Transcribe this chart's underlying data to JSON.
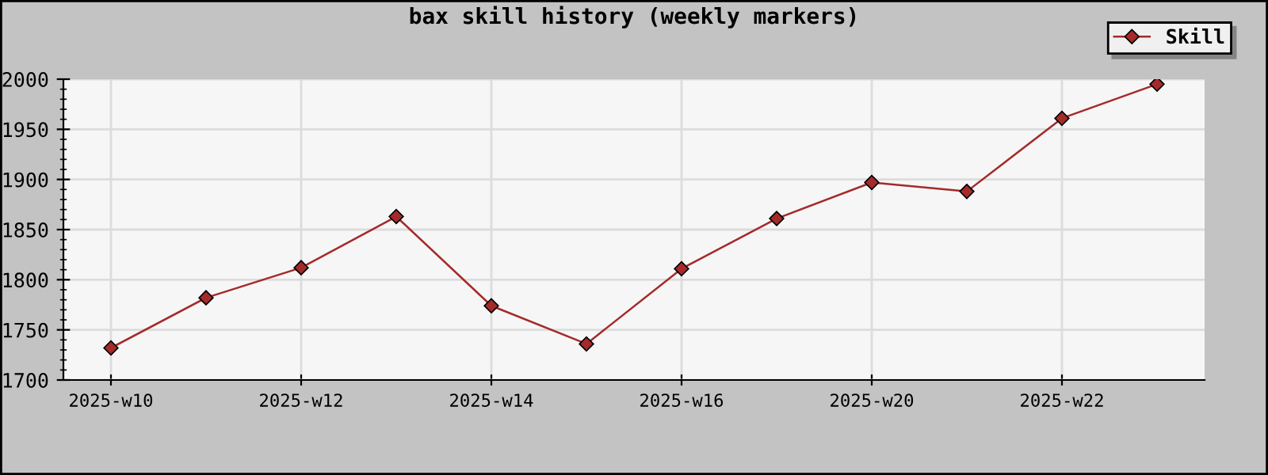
{
  "chart_data": {
    "type": "line",
    "title": "bax skill history (weekly markers)",
    "categories": [
      "2025-w10",
      null,
      "2025-w12",
      null,
      "2025-w14",
      null,
      "2025-w16",
      null,
      "2025-w20",
      null,
      "2025-w22",
      null
    ],
    "series": [
      {
        "name": "Skill",
        "color": "#a52a2a",
        "values": [
          1732,
          1782,
          1812,
          1863,
          1774,
          1736,
          1811,
          1861,
          1897,
          1888,
          1961,
          1995
        ]
      }
    ],
    "ylim": [
      1700,
      2000
    ],
    "yticks": [
      1700,
      1750,
      1800,
      1850,
      1900,
      1950,
      2000
    ],
    "grid": true,
    "legend": "top right",
    "marker": "diamond",
    "line_style": "solid"
  }
}
